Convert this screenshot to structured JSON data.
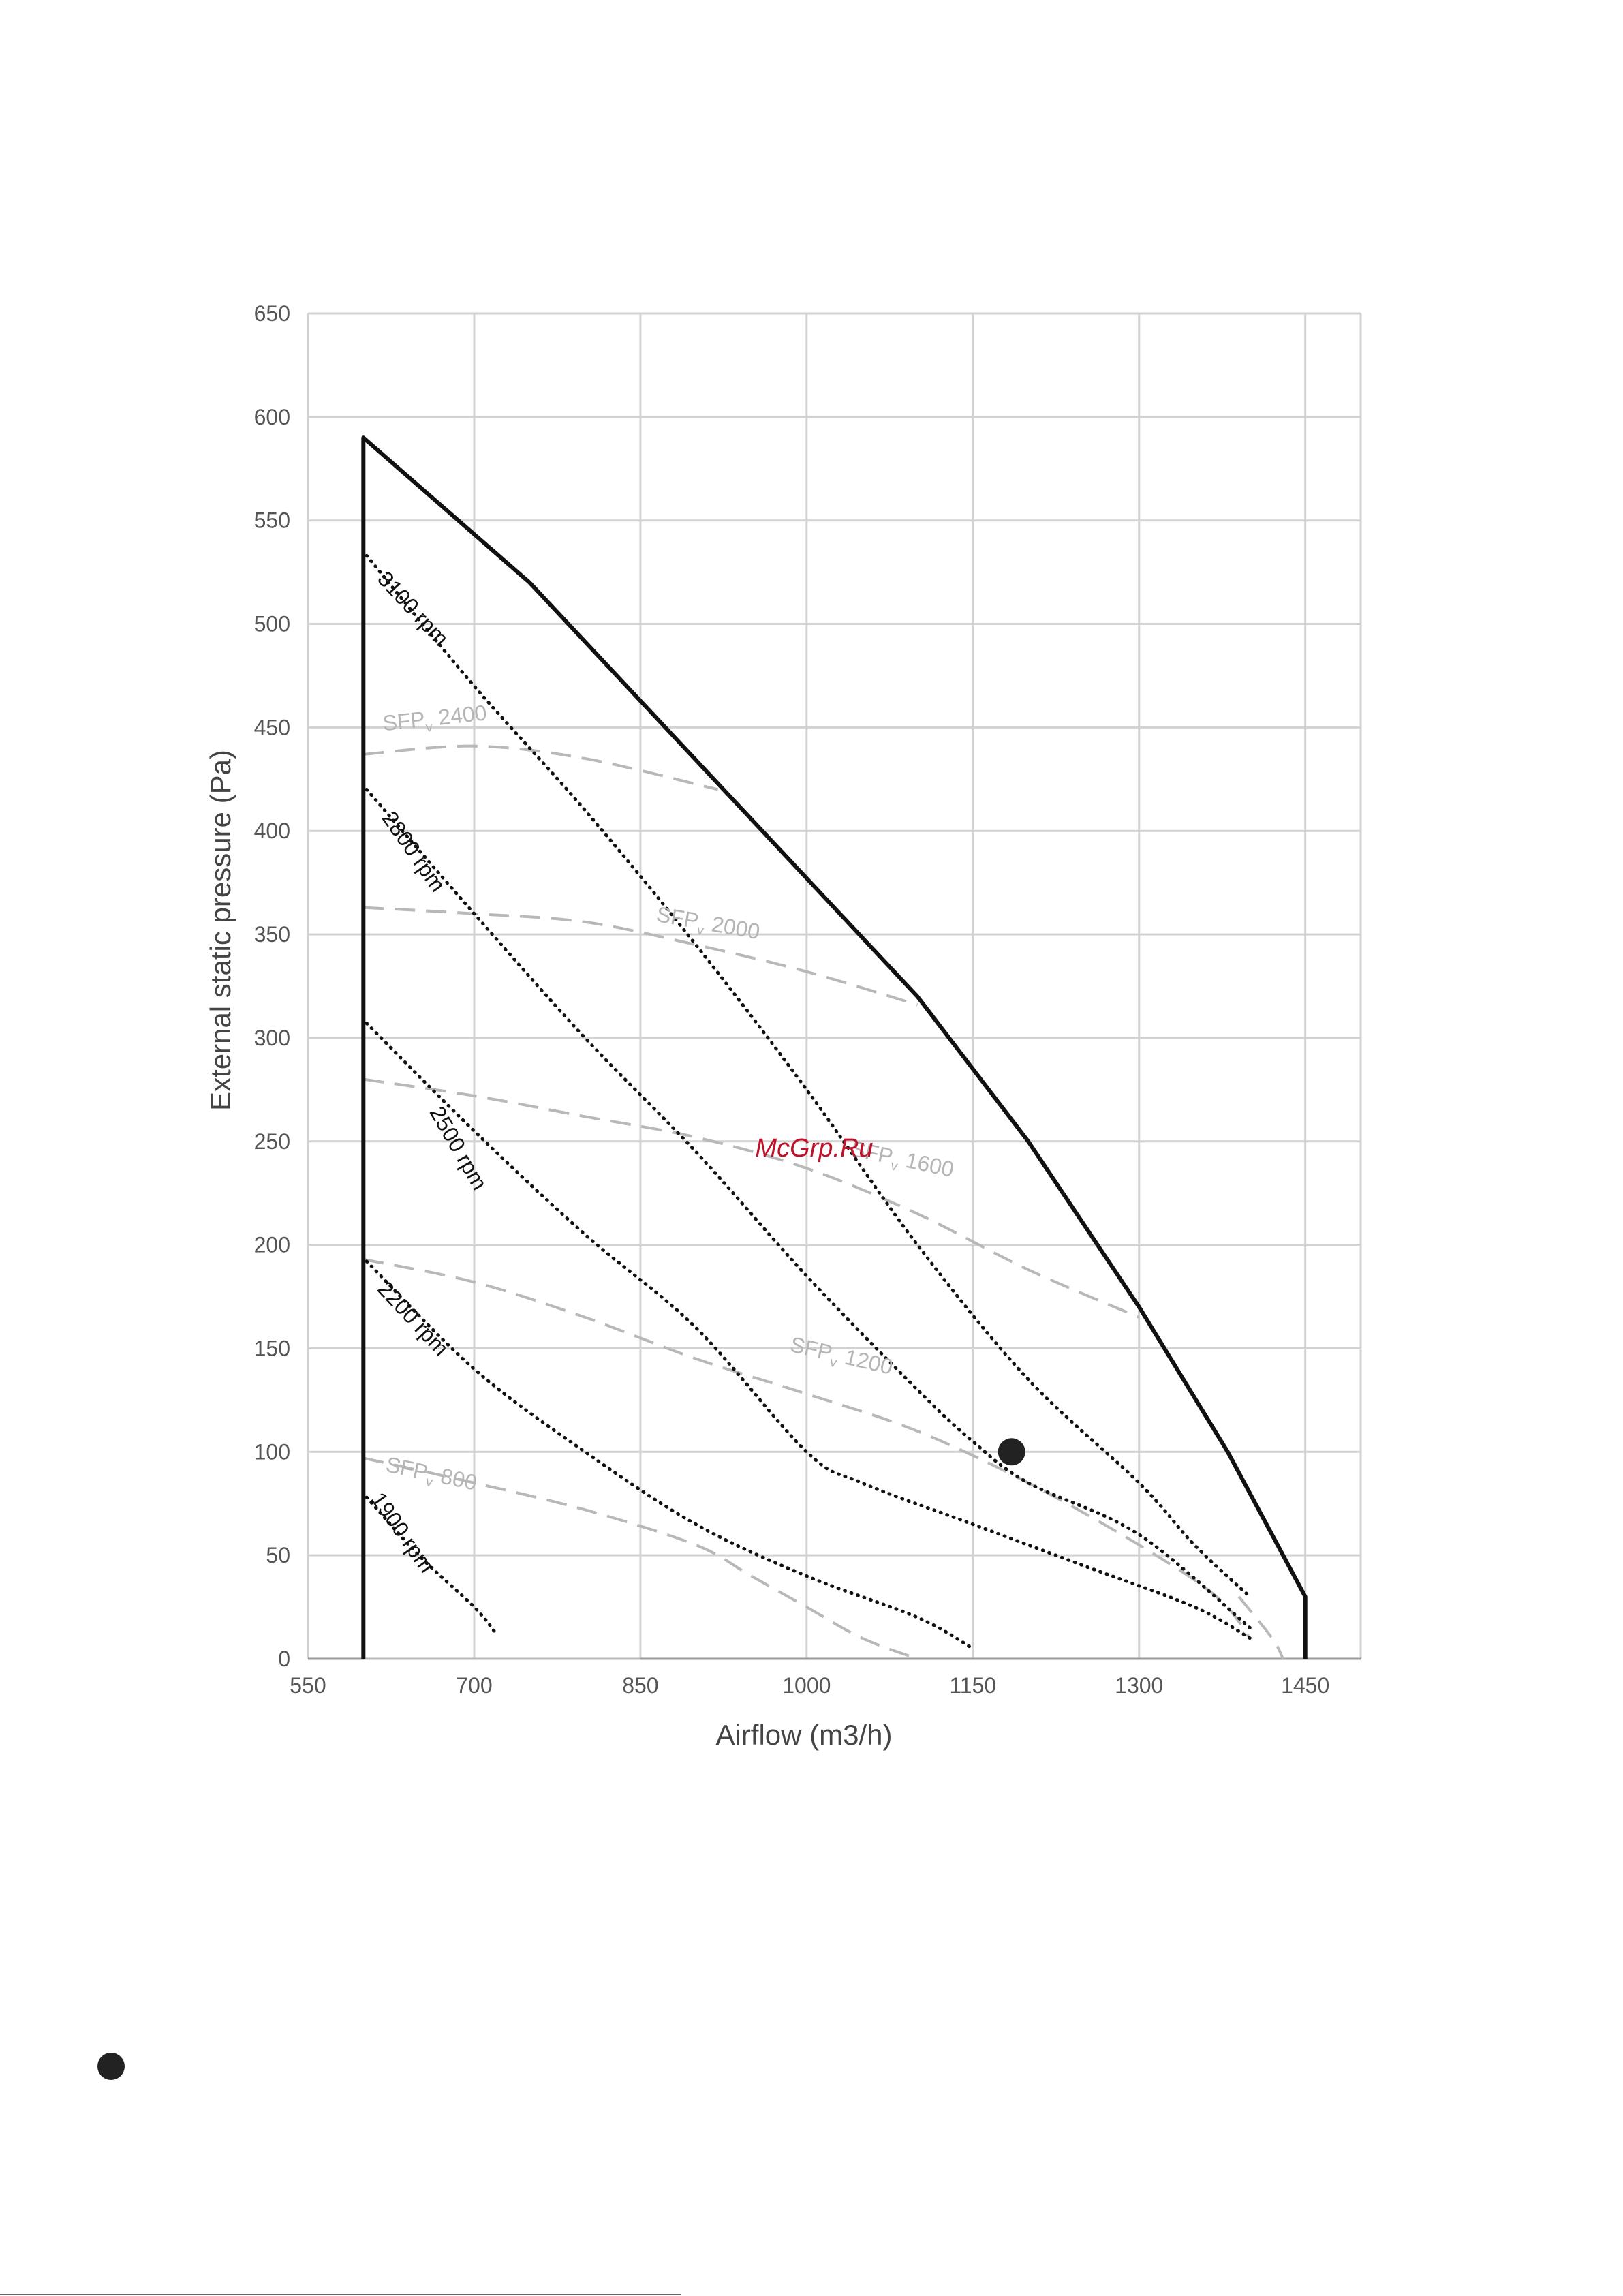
{
  "chart_data": {
    "type": "line",
    "title": "",
    "xlabel": "Airflow (m3/h)",
    "ylabel": "External static pressure (Pa)",
    "xlim": [
      550,
      1500
    ],
    "ylim": [
      0,
      650
    ],
    "x_ticks": [
      550,
      700,
      850,
      1000,
      1150,
      1300,
      1450
    ],
    "y_ticks": [
      0,
      50,
      100,
      150,
      200,
      250,
      300,
      350,
      400,
      450,
      500,
      550,
      600,
      650
    ],
    "grid": true,
    "envelope": {
      "points": [
        [
          600,
          0
        ],
        [
          600,
          590
        ],
        [
          750,
          520
        ],
        [
          1100,
          320
        ],
        [
          1200,
          250
        ],
        [
          1300,
          170
        ],
        [
          1380,
          100
        ],
        [
          1430,
          50
        ],
        [
          1450,
          30
        ],
        [
          1450,
          0
        ]
      ]
    },
    "rpm_curves": [
      {
        "label": "3100 rpm",
        "points": [
          [
            603,
            533
          ],
          [
            700,
            470
          ],
          [
            800,
            410
          ],
          [
            900,
            345
          ],
          [
            1000,
            275
          ],
          [
            1100,
            200
          ],
          [
            1200,
            135
          ],
          [
            1300,
            85
          ],
          [
            1350,
            55
          ],
          [
            1400,
            30
          ]
        ]
      },
      {
        "label": "2800 rpm",
        "points": [
          [
            603,
            420
          ],
          [
            700,
            360
          ],
          [
            800,
            300
          ],
          [
            900,
            245
          ],
          [
            1000,
            185
          ],
          [
            1100,
            130
          ],
          [
            1150,
            105
          ],
          [
            1200,
            85
          ],
          [
            1300,
            60
          ],
          [
            1400,
            15
          ]
        ]
      },
      {
        "label": "2500 rpm",
        "points": [
          [
            603,
            307
          ],
          [
            700,
            255
          ],
          [
            800,
            205
          ],
          [
            900,
            160
          ],
          [
            1000,
            100
          ],
          [
            1050,
            85
          ],
          [
            1150,
            65
          ],
          [
            1250,
            45
          ],
          [
            1350,
            25
          ],
          [
            1400,
            10
          ]
        ]
      },
      {
        "label": "2200 rpm",
        "points": [
          [
            603,
            192
          ],
          [
            700,
            140
          ],
          [
            800,
            100
          ],
          [
            900,
            65
          ],
          [
            1000,
            40
          ],
          [
            1100,
            20
          ],
          [
            1150,
            5
          ]
        ]
      },
      {
        "label": "1900 rpm",
        "points": [
          [
            603,
            78
          ],
          [
            650,
            50
          ],
          [
            700,
            25
          ],
          [
            720,
            12
          ]
        ]
      }
    ],
    "sfp_curves": [
      {
        "label": "SFP",
        "subscript": "v",
        "value": "2400",
        "points": [
          [
            600,
            437
          ],
          [
            700,
            441
          ],
          [
            800,
            435
          ],
          [
            920,
            420
          ]
        ]
      },
      {
        "label": "SFP",
        "subscript": "v",
        "value": "2000",
        "points": [
          [
            600,
            363
          ],
          [
            700,
            360
          ],
          [
            800,
            356
          ],
          [
            900,
            345
          ],
          [
            1000,
            332
          ],
          [
            1100,
            316
          ]
        ]
      },
      {
        "label": "SFP",
        "subscript": "v",
        "value": "1600",
        "points": [
          [
            600,
            280
          ],
          [
            700,
            272
          ],
          [
            800,
            262
          ],
          [
            900,
            252
          ],
          [
            1000,
            237
          ],
          [
            1100,
            215
          ],
          [
            1200,
            188
          ],
          [
            1300,
            165
          ]
        ]
      },
      {
        "label": "SFP",
        "subscript": "v",
        "value": "1200",
        "points": [
          [
            600,
            193
          ],
          [
            700,
            182
          ],
          [
            800,
            165
          ],
          [
            900,
            145
          ],
          [
            1000,
            128
          ],
          [
            1100,
            110
          ],
          [
            1200,
            85
          ],
          [
            1300,
            55
          ],
          [
            1370,
            30
          ],
          [
            1400,
            10
          ]
        ]
      },
      {
        "label": "SFP",
        "subscript": "v",
        "value": "800",
        "points": [
          [
            600,
            97
          ],
          [
            700,
            85
          ],
          [
            800,
            72
          ],
          [
            900,
            55
          ],
          [
            950,
            40
          ],
          [
            1000,
            25
          ],
          [
            1050,
            10
          ],
          [
            1100,
            0
          ]
        ]
      }
    ],
    "sfp_tail": {
      "points": [
        [
          1390,
          30
        ],
        [
          1420,
          10
        ],
        [
          1430,
          0
        ]
      ]
    },
    "flat_zero": {
      "points": [
        [
          600,
          0
        ],
        [
          850,
          0
        ]
      ]
    },
    "operating_point": {
      "x": 1185,
      "y": 100
    },
    "watermark": "McGrp.Ru"
  },
  "colors": {
    "envelope": "#111111",
    "rpm": "#111111",
    "sfp": "#b8b8b8",
    "grid": "#d2d2d2",
    "point": "#222222",
    "watermark": "#c0102a"
  }
}
